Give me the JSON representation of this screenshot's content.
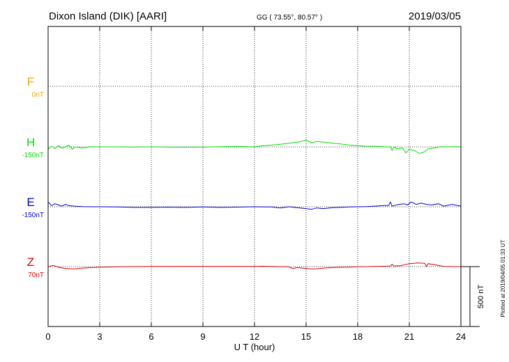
{
  "header": {
    "station": "Dixon Island (DIK)  [AARI]",
    "coords": "GG ( 73.55°,  80.57° )",
    "date": "2019/03/05"
  },
  "footer": {
    "plotted": "Plotted at 2019/04/05 01:33 UT"
  },
  "chart_data": {
    "type": "line",
    "xlabel": "U T (hour)",
    "xlim": [
      0,
      24
    ],
    "xticks": [
      0,
      3,
      6,
      9,
      12,
      15,
      18,
      21,
      24
    ],
    "scale_label": "500 nT",
    "grid": true,
    "series": [
      {
        "name": "F",
        "baseline_label": "0nT",
        "color": "#f5a400",
        "x": [],
        "y": []
      },
      {
        "name": "H",
        "baseline_label": "-150nT",
        "color": "#00e000",
        "x": [
          0,
          0.2,
          0.4,
          0.6,
          0.8,
          1.0,
          1.2,
          1.4,
          1.6,
          1.8,
          2.0,
          2.5,
          3.0,
          4,
          5,
          6,
          7,
          8,
          9,
          10,
          11,
          12,
          12.5,
          13,
          13.5,
          14,
          14.5,
          15,
          15.3,
          15.6,
          16,
          16.5,
          17,
          17.5,
          18,
          18.5,
          19,
          19.5,
          19.9,
          20.0,
          20.1,
          20.3,
          20.6,
          20.8,
          21.0,
          21.3,
          21.6,
          21.9,
          22.1,
          22.4,
          22.8,
          23.2,
          23.6,
          24
        ],
        "y": [
          -170,
          -145,
          -165,
          -140,
          -160,
          -150,
          -135,
          -170,
          -150,
          -155,
          -160,
          -148,
          -150,
          -150,
          -152,
          -150,
          -151,
          -153,
          -152,
          -148,
          -146,
          -150,
          -140,
          -135,
          -128,
          -120,
          -110,
          -95,
          -115,
          -105,
          -110,
          -118,
          -125,
          -135,
          -140,
          -145,
          -145,
          -148,
          -150,
          -180,
          -150,
          -165,
          -160,
          -200,
          -170,
          -180,
          -205,
          -190,
          -165,
          -160,
          -148,
          -150,
          -148,
          -150
        ]
      },
      {
        "name": "E",
        "baseline_label": "-150nT",
        "color": "#0000e0",
        "x": [
          0,
          0.2,
          0.4,
          0.6,
          0.8,
          1.0,
          1.2,
          1.5,
          2.0,
          2.5,
          3.0,
          4,
          5,
          6,
          7,
          8,
          9,
          10,
          11,
          12,
          13,
          13.5,
          14,
          14.5,
          15,
          15.3,
          15.6,
          16,
          16.5,
          17,
          17.5,
          18,
          18.5,
          19,
          19.5,
          19.8,
          19.9,
          20.0,
          20.1,
          20.4,
          20.7,
          20.9,
          21.1,
          21.4,
          21.7,
          22.0,
          22.3,
          22.7,
          23.0,
          23.5,
          24
        ],
        "y": [
          -110,
          -140,
          -125,
          -135,
          -145,
          -130,
          -140,
          -145,
          -148,
          -150,
          -150,
          -152,
          -155,
          -155,
          -153,
          -155,
          -152,
          -155,
          -153,
          -150,
          -152,
          -160,
          -150,
          -158,
          -165,
          -172,
          -160,
          -165,
          -158,
          -155,
          -152,
          -150,
          -148,
          -145,
          -140,
          -140,
          -110,
          -145,
          -140,
          -130,
          -125,
          -135,
          -110,
          -130,
          -120,
          -130,
          -135,
          -125,
          -145,
          -130,
          -145
        ]
      },
      {
        "name": "Z",
        "baseline_label": "70nT",
        "color": "#e00000",
        "x": [
          0,
          0.3,
          0.6,
          1.0,
          1.5,
          2.0,
          2.5,
          3.0,
          4,
          5,
          6,
          7,
          8,
          9,
          10,
          11,
          12,
          12.5,
          13,
          13.5,
          14,
          14.2,
          14.5,
          15,
          15.3,
          15.6,
          16,
          16.5,
          17,
          17.5,
          18,
          18.5,
          19,
          19.5,
          19.9,
          20.0,
          20.1,
          20.5,
          21.0,
          21.5,
          21.9,
          22.0,
          22.1,
          22.5,
          23.0,
          23.5,
          24
        ],
        "y": [
          70,
          80,
          65,
          55,
          50,
          58,
          62,
          65,
          68,
          70,
          72,
          72,
          72,
          72,
          71,
          71,
          72,
          73,
          72,
          70,
          68,
          55,
          62,
          55,
          50,
          52,
          58,
          62,
          65,
          66,
          68,
          70,
          72,
          73,
          74,
          90,
          75,
          78,
          95,
          100,
          98,
          72,
          95,
          85,
          72,
          70,
          70
        ]
      }
    ]
  }
}
